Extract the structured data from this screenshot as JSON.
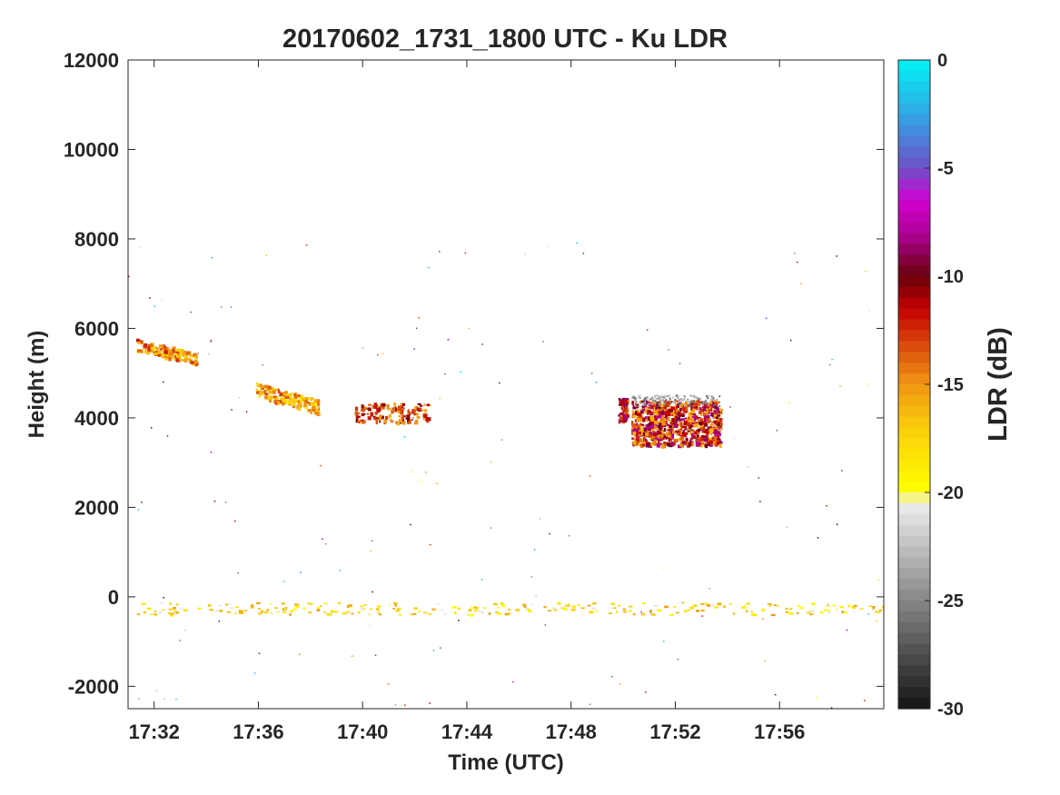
{
  "chart_data": {
    "type": "heatmap",
    "title": "20170602_1731_1800 UTC - Ku LDR",
    "xlabel": "Time (UTC)",
    "ylabel": "Height (m)",
    "x_ticks": [
      "17:32",
      "17:36",
      "17:40",
      "17:44",
      "17:48",
      "17:52",
      "17:56"
    ],
    "x_tick_minutes": [
      32,
      36,
      40,
      44,
      48,
      52,
      56
    ],
    "xlim_minutes": [
      31.0,
      60.0
    ],
    "y_ticks": [
      "12000",
      "10000",
      "8000",
      "6000",
      "4000",
      "2000",
      "0",
      "-2000"
    ],
    "y_tick_values": [
      12000,
      10000,
      8000,
      6000,
      4000,
      2000,
      0,
      -2000
    ],
    "ylim": [
      -2500,
      12000
    ],
    "colorbar": {
      "label": "LDR (dB)",
      "range": [
        -30,
        0
      ],
      "ticks": [
        "0",
        "-5",
        "-10",
        "-15",
        "-20",
        "-25",
        "-30"
      ],
      "tick_values": [
        0,
        -5,
        -10,
        -15,
        -20,
        -25,
        -30
      ]
    },
    "echo_layers": [
      {
        "t_start": 31.3,
        "t_end": 33.6,
        "h_top": 5800,
        "h_bottom": 5200,
        "ldr": -15
      },
      {
        "t_start": 35.9,
        "t_end": 38.3,
        "h_top": 4800,
        "h_bottom": 4100,
        "ldr": -16
      },
      {
        "t_start": 39.7,
        "t_end": 42.5,
        "h_top": 4350,
        "h_bottom": 3900,
        "ldr": -13
      },
      {
        "t_start": 49.8,
        "t_end": 50.1,
        "h_top": 4450,
        "h_bottom": 3950,
        "ldr": -11
      },
      {
        "t_start": 50.3,
        "t_end": 53.7,
        "h_top": 4400,
        "h_bottom": 3400,
        "ldr": -12
      },
      {
        "t_start": 31.0,
        "t_end": 60.0,
        "h_top": 200,
        "h_bottom": -700,
        "ldr": -18
      }
    ]
  }
}
